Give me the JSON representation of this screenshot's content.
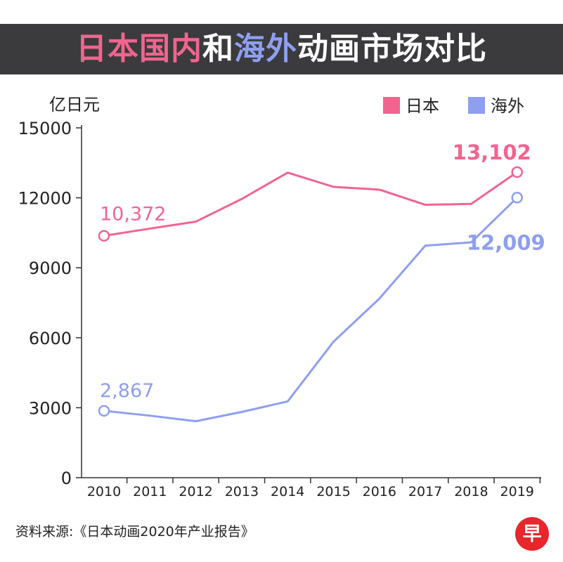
{
  "title": {
    "part1": "日本国内",
    "part2": "和",
    "part3": "海外",
    "part4": "动画市场对比"
  },
  "colors": {
    "japan": "#f2648f",
    "overseas": "#8e9ff0",
    "title_bar": "#3b3b3d",
    "axis": "#333333",
    "logo": "#e8262b"
  },
  "source": "资料来源:《日本动画2020年产业报告》",
  "logo": {
    "char": "早",
    "icon": "zaobao-logo-icon"
  },
  "chart_data": {
    "type": "line",
    "ylabel": "亿日元",
    "ylim": [
      0,
      15000
    ],
    "yticks": [
      0,
      3000,
      6000,
      9000,
      12000,
      15000
    ],
    "categories": [
      "2010",
      "2011",
      "2012",
      "2013",
      "2014",
      "2015",
      "2016",
      "2017",
      "2018",
      "2019"
    ],
    "series": [
      {
        "name": "日本",
        "key": "japan",
        "values": [
          10372,
          10680,
          10980,
          11950,
          13080,
          12470,
          12350,
          11700,
          11740,
          13102
        ],
        "labels": [
          {
            "index": 0,
            "text": "10,372",
            "bold": false
          },
          {
            "index": 9,
            "text": "13,102",
            "bold": true
          }
        ]
      },
      {
        "name": "海外",
        "key": "overseas",
        "values": [
          2867,
          2660,
          2420,
          2820,
          3270,
          5830,
          7680,
          9950,
          10090,
          12009
        ],
        "labels": [
          {
            "index": 0,
            "text": "2,867",
            "bold": false
          },
          {
            "index": 9,
            "text": "12,009",
            "bold": true
          }
        ]
      }
    ],
    "legend": [
      "日本",
      "海外"
    ],
    "legend_position": "top-right"
  }
}
